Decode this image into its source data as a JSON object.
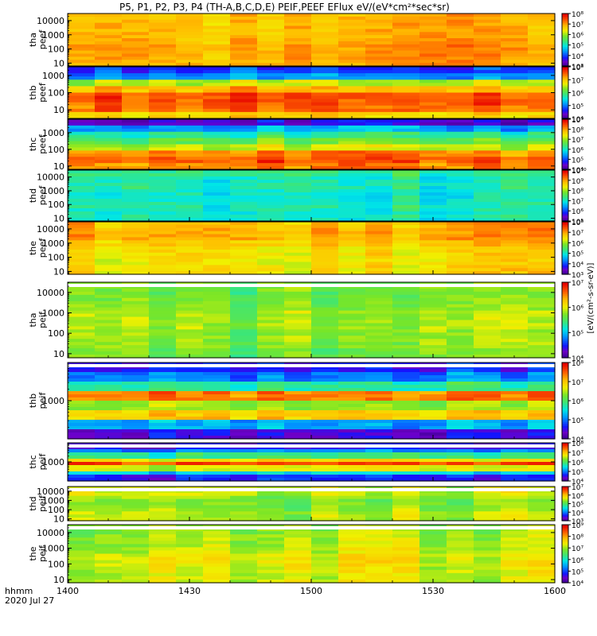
{
  "title": "P5, P1, P2, P3, P4 (TH-A,B,C,D,E) PEIF,PEEF EFlux eV/(eV*cm²*sec*sr)",
  "time_label": "hhmm",
  "date_label": "2020 Jul 27",
  "x_ticks": [
    "1400",
    "1430",
    "1500",
    "1530",
    "1600"
  ],
  "colorbar_label": "[eV/(cm²-s-sr-eV)]",
  "colors": {
    "background": "#ffffff",
    "axis": "#000000",
    "gap": "#ffffff"
  },
  "chart_data": {
    "type": "heatmap",
    "x_range_minutes": [
      0,
      120
    ],
    "x_start": "1400",
    "x_end": "1600",
    "panels": [
      {
        "name": "panel-tha-peef",
        "label": [
          "tha",
          "peef"
        ],
        "yticks": [
          "10000",
          "1000",
          "100",
          "10"
        ],
        "ylog": [
          0.8,
          4.5
        ],
        "cbar_ticks": [
          "10⁸",
          "10⁷",
          "10⁶",
          "10⁵",
          "10⁴",
          "10³"
        ],
        "clog": [
          3,
          8
        ],
        "intensity_profile": [
          0.78,
          0.78,
          0.78,
          0.78,
          0.8,
          0.82,
          0.82,
          0.8
        ]
      },
      {
        "name": "panel-thb-peef",
        "label": [
          "thb",
          "peef"
        ],
        "yticks": [
          "1000",
          "100",
          "10"
        ],
        "ylog": [
          0.5,
          3.5
        ],
        "cbar_ticks": [
          "10⁸",
          "10⁷",
          "10⁶",
          "10⁵",
          "10⁴"
        ],
        "clog": [
          4,
          8
        ],
        "intensity_profile": [
          0.2,
          0.3,
          0.65,
          0.8,
          0.92,
          0.92,
          0.9,
          0.75
        ]
      },
      {
        "name": "panel-thc-peef",
        "label": [
          "thc",
          "peef"
        ],
        "yticks": [
          "1000",
          "100",
          "10"
        ],
        "ylog": [
          0.8,
          3.8
        ],
        "cbar_ticks": [
          "10⁹",
          "10⁸",
          "10⁷",
          "10⁶",
          "10⁵",
          "10⁴"
        ],
        "clog": [
          4,
          9
        ],
        "intensity_profile": [
          0.1,
          0.3,
          0.45,
          0.55,
          0.65,
          0.85,
          0.9,
          0.85
        ]
      },
      {
        "name": "panel-thd-peef",
        "label": [
          "thd",
          "peef"
        ],
        "yticks": [
          "10000",
          "1000",
          "100",
          "10"
        ],
        "ylog": [
          0.8,
          4.5
        ],
        "cbar_ticks": [
          "10¹⁰",
          "10⁹",
          "10⁸",
          "10⁷",
          "10⁶",
          "10⁵"
        ],
        "clog": [
          5,
          10
        ],
        "intensity_profile": [
          0.45,
          0.42,
          0.42,
          0.4,
          0.4,
          0.42,
          0.4,
          0.4
        ]
      },
      {
        "name": "panel-the-peef",
        "label": [
          "the",
          "peef"
        ],
        "yticks": [
          "10000",
          "1000",
          "100",
          "10"
        ],
        "ylog": [
          0.8,
          4.5
        ],
        "cbar_ticks": [
          "10⁸",
          "10⁷",
          "10⁶",
          "10⁵",
          "10⁴",
          "10³"
        ],
        "clog": [
          3,
          8
        ],
        "intensity_profile": [
          0.78,
          0.8,
          0.8,
          0.75,
          0.72,
          0.72,
          0.7,
          0.72
        ]
      },
      {
        "name": "panel-tha-peif",
        "label": [
          "tha",
          "peif"
        ],
        "yticks": [
          "10000",
          "1000",
          "100",
          "10"
        ],
        "ylog": [
          0.8,
          4.5
        ],
        "cbar_ticks": [
          "10⁷",
          "10⁶",
          "10⁵",
          "10⁴"
        ],
        "clog": [
          4,
          7
        ],
        "intensity_profile": [
          0.55,
          0.55,
          0.57,
          0.6,
          0.6,
          0.58,
          0.58,
          0.55
        ]
      },
      {
        "name": "panel-thb-peif",
        "label": [
          "thb",
          "peif"
        ],
        "yticks": [
          "1000"
        ],
        "ylog": [
          2.0,
          4.0
        ],
        "cbar_ticks": [
          "10⁸",
          "10⁷",
          "10⁶",
          "10⁵",
          "10⁴"
        ],
        "clog": [
          4,
          8
        ],
        "intensity_profile": [
          0.15,
          0.25,
          0.45,
          0.85,
          0.6,
          0.75,
          0.3,
          0.1
        ]
      },
      {
        "name": "panel-thc-peif",
        "label": [
          "thc",
          "peif"
        ],
        "yticks": [
          "1000"
        ],
        "ylog": [
          2.0,
          4.0
        ],
        "cbar_ticks": [
          "10⁸",
          "10⁷",
          "10⁶",
          "10⁵",
          "10⁴"
        ],
        "clog": [
          4,
          8
        ],
        "intensity_profile": [
          0.1,
          0.25,
          0.45,
          0.7,
          0.9,
          0.65,
          0.35,
          0.15
        ]
      },
      {
        "name": "panel-thd-peif",
        "label": [
          "thd",
          "peif"
        ],
        "yticks": [
          "10000",
          "1000",
          "100",
          "10"
        ],
        "ylog": [
          0.8,
          4.5
        ],
        "cbar_ticks": [
          "10⁷",
          "10⁶",
          "10⁵",
          "10⁴",
          "10³"
        ],
        "clog": [
          3,
          7
        ],
        "intensity_profile": [
          0.65,
          0.65,
          0.6,
          0.58,
          0.58,
          0.6,
          0.62,
          0.62
        ]
      },
      {
        "name": "panel-the-peif",
        "label": [
          "the",
          "peif"
        ],
        "yticks": [
          "10000",
          "1000",
          "100",
          "10"
        ],
        "ylog": [
          0.8,
          4.5
        ],
        "cbar_ticks": [
          "10⁹",
          "10⁸",
          "10⁷",
          "10⁶",
          "10⁵",
          "10⁴"
        ],
        "clog": [
          4,
          9
        ],
        "intensity_profile": [
          0.6,
          0.62,
          0.62,
          0.65,
          0.68,
          0.68,
          0.66,
          0.65
        ]
      }
    ]
  }
}
